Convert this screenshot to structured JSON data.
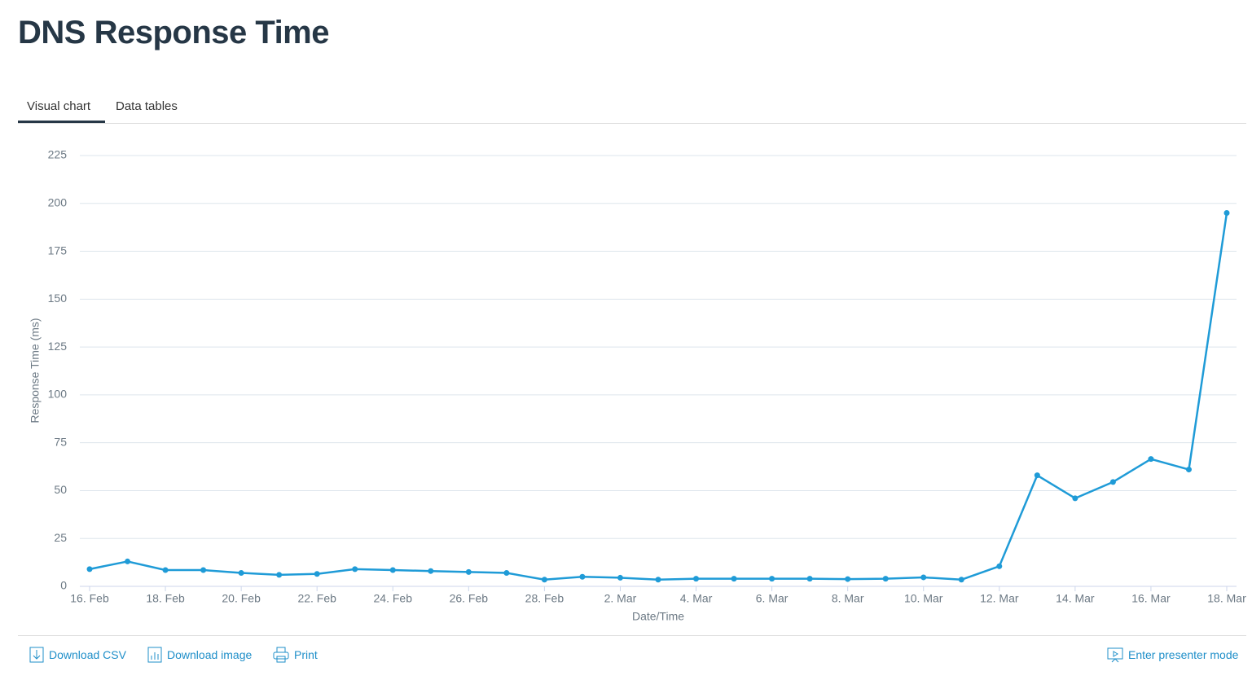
{
  "header": {
    "title": "DNS Response Time"
  },
  "tabs": [
    "Visual chart",
    "Data tables"
  ],
  "chart_data": {
    "type": "line",
    "x_label": "Date/Time",
    "y_label": "Response Time (ms)",
    "categories": [
      "16. Feb",
      null,
      "18. Feb",
      null,
      "20. Feb",
      null,
      "22. Feb",
      null,
      "24. Feb",
      null,
      "26. Feb",
      null,
      "28. Feb",
      null,
      "2. Mar",
      null,
      "4. Mar",
      null,
      "6. Mar",
      null,
      "8. Mar",
      null,
      "10. Mar",
      null,
      "12. Mar",
      null,
      "14. Mar",
      null,
      "16. Mar",
      null,
      "18. Mar"
    ],
    "series": [
      {
        "name": "Response Time",
        "color": "#1f9bd7",
        "values": [
          9,
          13,
          8.5,
          8.5,
          7,
          6,
          6.5,
          9,
          8.5,
          8,
          7.5,
          7,
          3.5,
          5,
          4.5,
          3.5,
          4,
          4,
          4,
          4,
          3.8,
          4,
          4.7,
          3.5,
          10.5,
          58,
          46,
          54.5,
          66.5,
          61,
          195
        ]
      }
    ],
    "ylim": [
      0,
      225
    ],
    "yticks": [
      0,
      25,
      50,
      75,
      100,
      125,
      150,
      175,
      200,
      225
    ],
    "grid": true
  },
  "footer": {
    "actions": [
      "Download CSV",
      "Download image",
      "Print"
    ],
    "presenter": "Enter presenter mode"
  }
}
